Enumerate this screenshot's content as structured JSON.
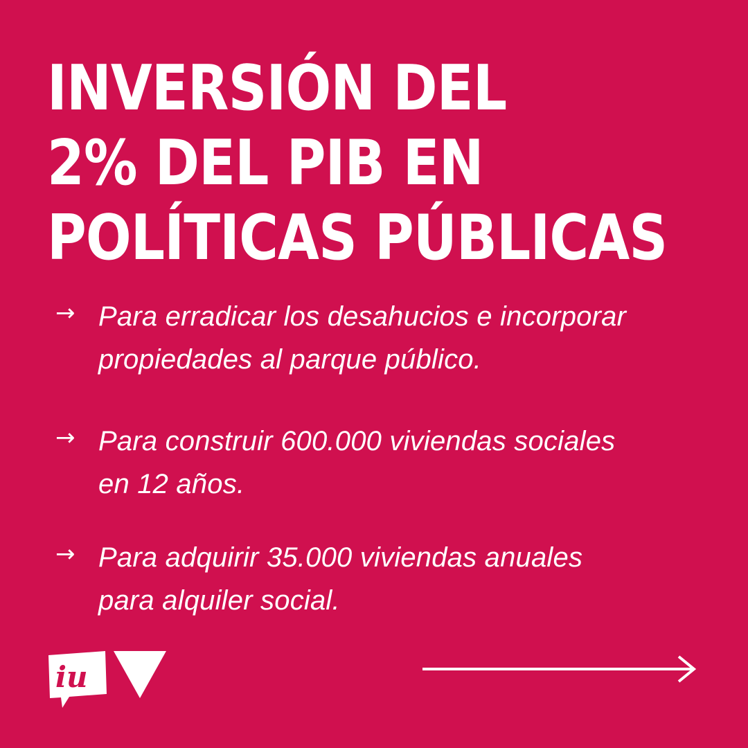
{
  "headline": {
    "line1": "INVERSIÓN DEL",
    "line2": "2% DEL PIB EN",
    "line3": "POLÍTICAS PÚBLICAS"
  },
  "bullets": [
    {
      "arrow": "→",
      "line1": "Para erradicar los desahucios e incorporar",
      "line2": "propiedades al parque público."
    },
    {
      "arrow": "→",
      "line1": "Para construir 600.000 viviendas sociales",
      "line2": "en 12 años."
    },
    {
      "arrow": "→",
      "line1": "Para adquirir 35.000 viviendas anuales",
      "line2": "para alquiler social."
    }
  ],
  "logo": {
    "iu_text": "iu"
  },
  "colors": {
    "background": "#d0104f",
    "foreground": "#ffffff"
  }
}
